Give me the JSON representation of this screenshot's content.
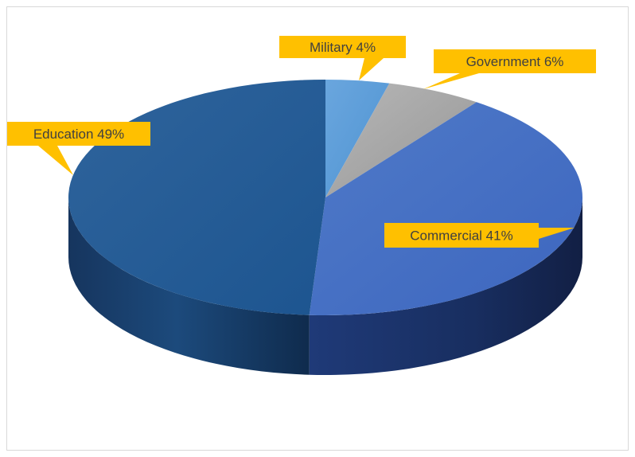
{
  "chart_data": {
    "type": "pie",
    "style": "3d",
    "title": "",
    "slices": [
      {
        "label": "Military",
        "value": 4,
        "display": "Military 4%",
        "color": "#5b9bd5"
      },
      {
        "label": "Government",
        "value": 6,
        "display": "Government 6%",
        "color": "#a5a5a5"
      },
      {
        "label": "Commercial",
        "value": 41,
        "display": "Commercial 41%",
        "color": "#4472c4"
      },
      {
        "label": "Education",
        "value": 49,
        "display": "Education 49%",
        "color": "#255e91"
      }
    ],
    "label_style": "callout",
    "callout_color": "#ffc000"
  }
}
